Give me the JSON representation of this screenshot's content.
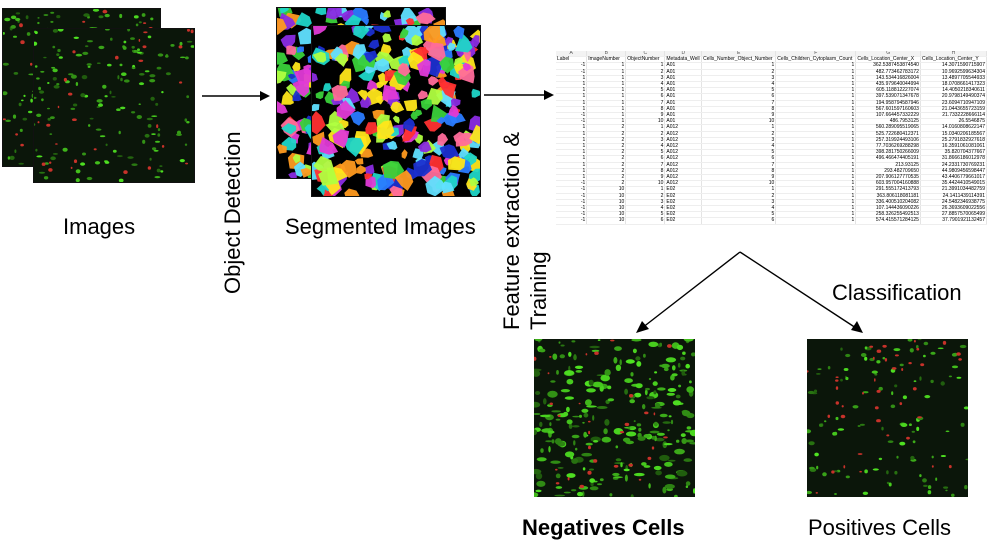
{
  "labels": {
    "images": "Images",
    "object_detection": "Object Detection",
    "segmented_images": "Segmented Images",
    "feature_line1": "Feature  extraction &",
    "feature_line2": "Training",
    "classification": "Classification",
    "negatives": "Negatives Cells",
    "positives": "Positives Cells"
  },
  "colors": {
    "cell_green": "#3fae2a",
    "cell_red": "#c8322a",
    "background_dark": "#0b160a",
    "segment_palette": [
      "#ff3030",
      "#ff9a1f",
      "#ffe61a",
      "#3ad13a",
      "#1fd6c8",
      "#2a7bff",
      "#1b2fcf",
      "#8a2be2",
      "#e03ad6",
      "#60e0ff",
      "#b0ff40",
      "#ff6b9a"
    ]
  },
  "spreadsheet": {
    "column_letters": [
      "A",
      "B",
      "C",
      "D",
      "E",
      "F",
      "G",
      "H"
    ],
    "headers": [
      "Label",
      "ImageNumber",
      "ObjectNumber",
      "Metadata_Well",
      "Cells_Number_Object_Number",
      "Cells_Children_Cytoplasm_Count",
      "Cells_Location_Center_X",
      "Cells_Location_Center_Y"
    ],
    "rows": [
      [
        "-1",
        "1",
        "1",
        "A01",
        "1",
        "1",
        "362.5387453874540",
        "14.3071590715907"
      ],
      [
        "-1",
        "1",
        "2",
        "A01",
        "2",
        "1",
        "482.773462783172",
        "10.9692599634304"
      ],
      [
        "1",
        "1",
        "3",
        "A01",
        "3",
        "1",
        "143.534416826004",
        "13.4897705544933"
      ],
      [
        "1",
        "1",
        "4",
        "A01",
        "4",
        "1",
        "435.979640044994",
        "18.0708661417323"
      ],
      [
        "1",
        "1",
        "5",
        "A01",
        "5",
        "1",
        "605.118812227074",
        "14.4050218340611"
      ],
      [
        "1",
        "1",
        "6",
        "A01",
        "6",
        "1",
        "397.539071347678",
        "20.9798149490374"
      ],
      [
        "1",
        "1",
        "7",
        "A01",
        "7",
        "1",
        "194.958794587946",
        "23.6094710947109"
      ],
      [
        "1",
        "1",
        "8",
        "A01",
        "8",
        "1",
        "567.601597160603",
        "21.0443655723159"
      ],
      [
        "-1",
        "1",
        "9",
        "A01",
        "9",
        "1",
        "107.664457332229",
        "21.7332228666114"
      ],
      [
        "-1",
        "1",
        "10",
        "A01",
        "10",
        "1",
        "486.7953125",
        "26.5546875"
      ],
      [
        "1",
        "2",
        "1",
        "A012",
        "1",
        "1",
        "560.289095519065",
        "14.0160808622147"
      ],
      [
        "1",
        "2",
        "2",
        "A012",
        "2",
        "1",
        "525.722680412371",
        "15.0340206185567"
      ],
      [
        "1",
        "2",
        "3",
        "A012",
        "3",
        "1",
        "257.319924493106",
        "25.2791832927618"
      ],
      [
        "1",
        "2",
        "4",
        "A012",
        "4",
        "1",
        "77.7036269288298",
        "16.3591061081061"
      ],
      [
        "1",
        "2",
        "5",
        "A012",
        "5",
        "1",
        "398.281750266009",
        "35.820704377667"
      ],
      [
        "1",
        "2",
        "6",
        "A012",
        "6",
        "1",
        "496.466474405191",
        "31.8666186012978"
      ],
      [
        "1",
        "2",
        "7",
        "A012",
        "7",
        "1",
        "213.93125",
        "24.2331730769231"
      ],
      [
        "1",
        "2",
        "8",
        "A012",
        "8",
        "1",
        "293.482709650",
        "44.9809456598447"
      ],
      [
        "1",
        "2",
        "9",
        "A012",
        "9",
        "1",
        "207.906127770535",
        "43.4406779661017"
      ],
      [
        "-1",
        "2",
        "10",
        "A012",
        "10",
        "1",
        "603.957004160888",
        "35.4424410549015"
      ],
      [
        "-1",
        "10",
        "1",
        "E02",
        "1",
        "1",
        "291.555172413793",
        "21.3991034482759"
      ],
      [
        "-1",
        "10",
        "2",
        "E02",
        "2",
        "1",
        "363.806118081181",
        "24.1411439114391"
      ],
      [
        "-1",
        "10",
        "3",
        "E02",
        "3",
        "1",
        "336.400510204082",
        "24.5482346938775"
      ],
      [
        "-1",
        "10",
        "4",
        "E02",
        "4",
        "1",
        "107.144436090226",
        "26.3693609022556"
      ],
      [
        "-1",
        "10",
        "5",
        "E02",
        "5",
        "1",
        "258.326255492513",
        "27.8857570065499"
      ],
      [
        "-1",
        "10",
        "6",
        "E02",
        "6",
        "1",
        "574.415571284125",
        "37.7901921132457"
      ]
    ]
  }
}
